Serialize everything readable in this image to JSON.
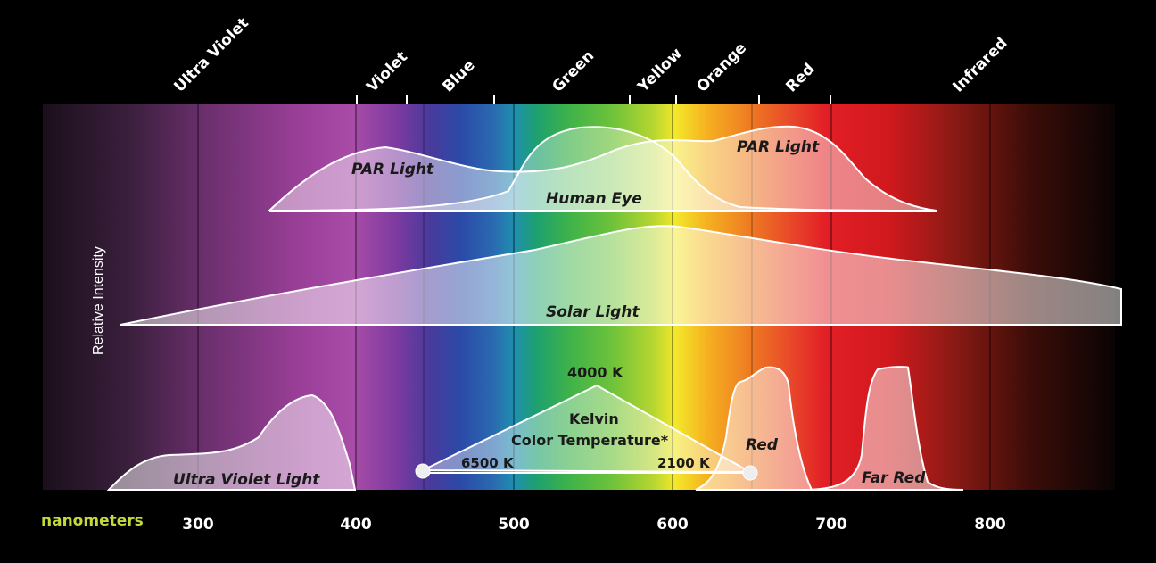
{
  "bands": {
    "ultraviolet": "Ultra Violet",
    "violet": "Violet",
    "blue": "Blue",
    "green": "Green",
    "yellow": "Yellow",
    "orange": "Orange",
    "red": "Red",
    "infrared": "Infrared"
  },
  "y_axis_label": "Relative Intensity",
  "x_axis": {
    "unit_label": "nanometers",
    "ticks": [
      "300",
      "400",
      "500",
      "600",
      "700",
      "800"
    ]
  },
  "curves": {
    "par_light_left": "PAR Light",
    "par_light_right": "PAR Light",
    "human_eye": "Human Eye",
    "solar_light": "Solar Light",
    "ultra_violet_light": "Ultra Violet Light",
    "red": "Red",
    "far_red": "Far Red"
  },
  "kelvin": {
    "top": "4000 K",
    "title_line1": "Kelvin",
    "title_line2": "Color Temperature*",
    "left": "6500 K",
    "right": "2100 K"
  },
  "colors": {
    "nanometers_label": "#c6d93a",
    "curve_stroke": "#ffffff"
  }
}
